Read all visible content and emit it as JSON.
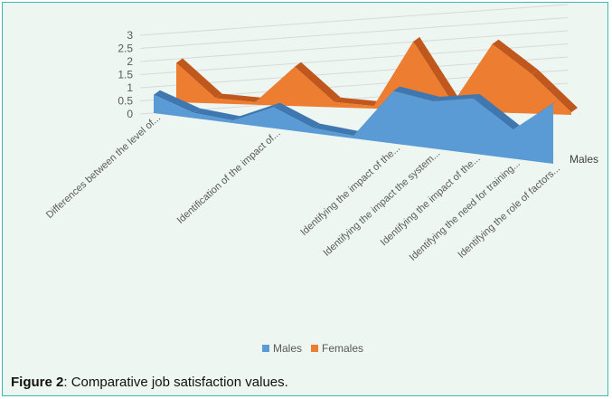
{
  "chart_data": {
    "type": "area",
    "three_d": true,
    "categories": [
      "Differences between the level of...",
      "",
      "",
      "Identification of the impact of...",
      "",
      "",
      "Identifying the impact of the...",
      "Identifying the impact the system...",
      "Identifying the impact of the...",
      "Identifying the need for training...",
      "Identifying the role of factors..."
    ],
    "series": [
      {
        "name": "Males",
        "values": [
          0.7,
          0.2,
          0.1,
          0.8,
          0.2,
          0.1,
          2.0,
          1.8,
          2.1,
          1.1,
          2.3
        ]
      },
      {
        "name": "Females",
        "values": [
          1.5,
          0.2,
          0.1,
          1.5,
          0.2,
          0.1,
          2.6,
          0.3,
          2.6,
          1.5,
          0.1
        ]
      }
    ],
    "yticks": [
      "0",
      "0.5",
      "1",
      "1.5",
      "2",
      "2.5",
      "3"
    ],
    "ylim": [
      0,
      3
    ],
    "depth_label": "Males",
    "legend_position": "bottom",
    "colors": {
      "Males": "#5b9bd5",
      "Females": "#ed7d31"
    }
  },
  "caption": {
    "label": "Figure 2",
    "text": ": Comparative job satisfaction values."
  }
}
